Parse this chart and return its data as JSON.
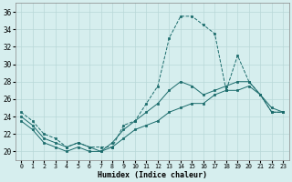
{
  "xlabel": "Humidex (Indice chaleur)",
  "xlim": [
    -0.5,
    23.5
  ],
  "ylim": [
    19,
    37
  ],
  "yticks": [
    20,
    22,
    24,
    26,
    28,
    30,
    32,
    34,
    36
  ],
  "xticks": [
    0,
    1,
    2,
    3,
    4,
    5,
    6,
    7,
    8,
    9,
    10,
    11,
    12,
    13,
    14,
    15,
    16,
    17,
    18,
    19,
    20,
    21,
    22,
    23
  ],
  "bg_color": "#d6eeee",
  "grid_color": "#b8d8d8",
  "line_color": "#1a6b6b",
  "series1_x": [
    0,
    1,
    2,
    3,
    4,
    5,
    6,
    7,
    8,
    9,
    10,
    11,
    12,
    13,
    14,
    15,
    16,
    17,
    18,
    19,
    20,
    21,
    22,
    23
  ],
  "series1_y": [
    24.5,
    23.5,
    22.0,
    21.5,
    20.5,
    21.0,
    20.5,
    20.5,
    20.5,
    23.0,
    23.5,
    25.5,
    27.5,
    33.0,
    35.5,
    35.5,
    34.5,
    33.5,
    27.0,
    31.0,
    28.0,
    26.5,
    24.5,
    24.5
  ],
  "series2_x": [
    0,
    1,
    2,
    3,
    4,
    5,
    6,
    7,
    8,
    9,
    10,
    11,
    12,
    13,
    14,
    15,
    16,
    17,
    18,
    19,
    20,
    21,
    22,
    23
  ],
  "series2_y": [
    24.0,
    23.0,
    21.5,
    21.0,
    20.5,
    21.0,
    20.5,
    20.0,
    21.0,
    22.5,
    23.5,
    24.5,
    25.5,
    27.0,
    28.0,
    27.5,
    26.5,
    27.0,
    27.5,
    28.0,
    28.0,
    26.5,
    25.0,
    24.5
  ],
  "series3_x": [
    0,
    1,
    2,
    3,
    4,
    5,
    6,
    7,
    8,
    9,
    10,
    11,
    12,
    13,
    14,
    15,
    16,
    17,
    18,
    19,
    20,
    21,
    22,
    23
  ],
  "series3_y": [
    23.5,
    22.5,
    21.0,
    20.5,
    20.0,
    20.5,
    20.0,
    20.0,
    20.5,
    21.5,
    22.5,
    23.0,
    23.5,
    24.5,
    25.0,
    25.5,
    25.5,
    26.5,
    27.0,
    27.0,
    27.5,
    26.5,
    24.5,
    24.5
  ]
}
